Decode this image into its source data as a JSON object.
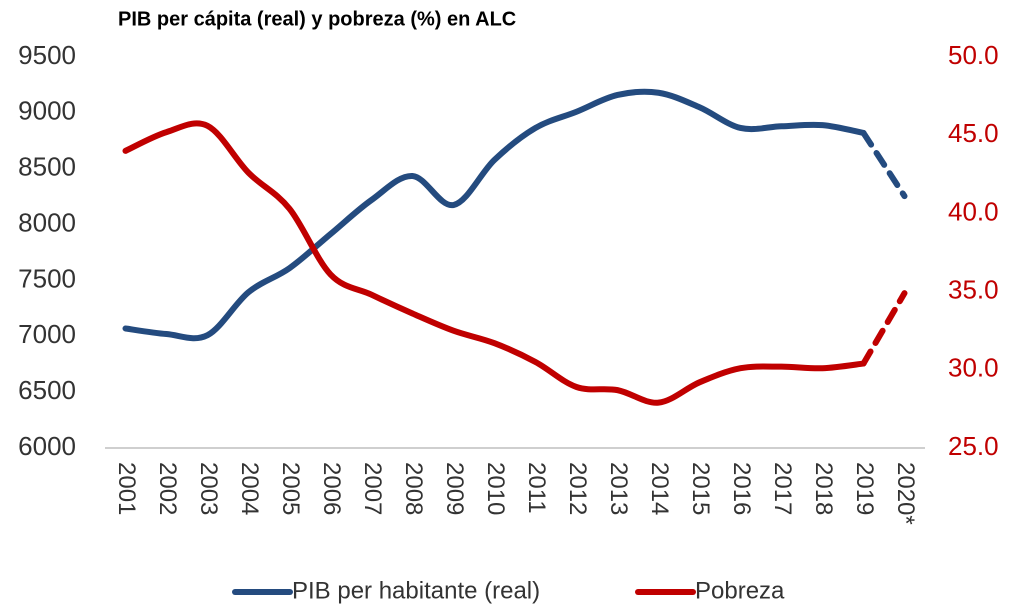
{
  "chart_data": {
    "type": "line",
    "title": "PIB per cápita (real) y pobreza (%) en ALC",
    "categories": [
      "2001",
      "2002",
      "2003",
      "2004",
      "2005",
      "2006",
      "2007",
      "2008",
      "2009",
      "2010",
      "2011",
      "2012",
      "2013",
      "2014",
      "2015",
      "2016",
      "2017",
      "2018",
      "2019",
      "2020*"
    ],
    "series": [
      {
        "name": "PIB per habitante (real)",
        "color": "#244b7f",
        "axis": "y",
        "dashed_from": 18,
        "values": [
          7070,
          7020,
          7010,
          7395,
          7610,
          7915,
          8220,
          8435,
          8175,
          8580,
          8865,
          9010,
          9160,
          9180,
          9050,
          8865,
          8880,
          8890,
          8820,
          8255
        ]
      },
      {
        "name": "Pobreza",
        "color": "#c00000",
        "axis": "y2",
        "dashed_from": 18,
        "values": [
          44.0,
          45.2,
          45.6,
          42.6,
          40.3,
          36.1,
          34.8,
          33.6,
          32.5,
          31.7,
          30.5,
          28.9,
          28.7,
          27.9,
          29.2,
          30.1,
          30.2,
          30.1,
          30.4,
          34.9
        ]
      }
    ],
    "ylim": [
      6000,
      9500
    ],
    "yticks": [
      6000,
      6500,
      7000,
      7500,
      8000,
      8500,
      9000,
      9500
    ],
    "y2lim": [
      25,
      50
    ],
    "y2ticks": [
      {
        "value": 25,
        "label": "25.0"
      },
      {
        "value": 30,
        "label": "30.0"
      },
      {
        "value": 35,
        "label": "35.0"
      },
      {
        "value": 40,
        "label": "40.0"
      },
      {
        "value": 45,
        "label": "45.0"
      },
      {
        "value": 50,
        "label": "50.0"
      }
    ],
    "y2color": "#c00000",
    "grid": false,
    "legend": "bottom"
  }
}
